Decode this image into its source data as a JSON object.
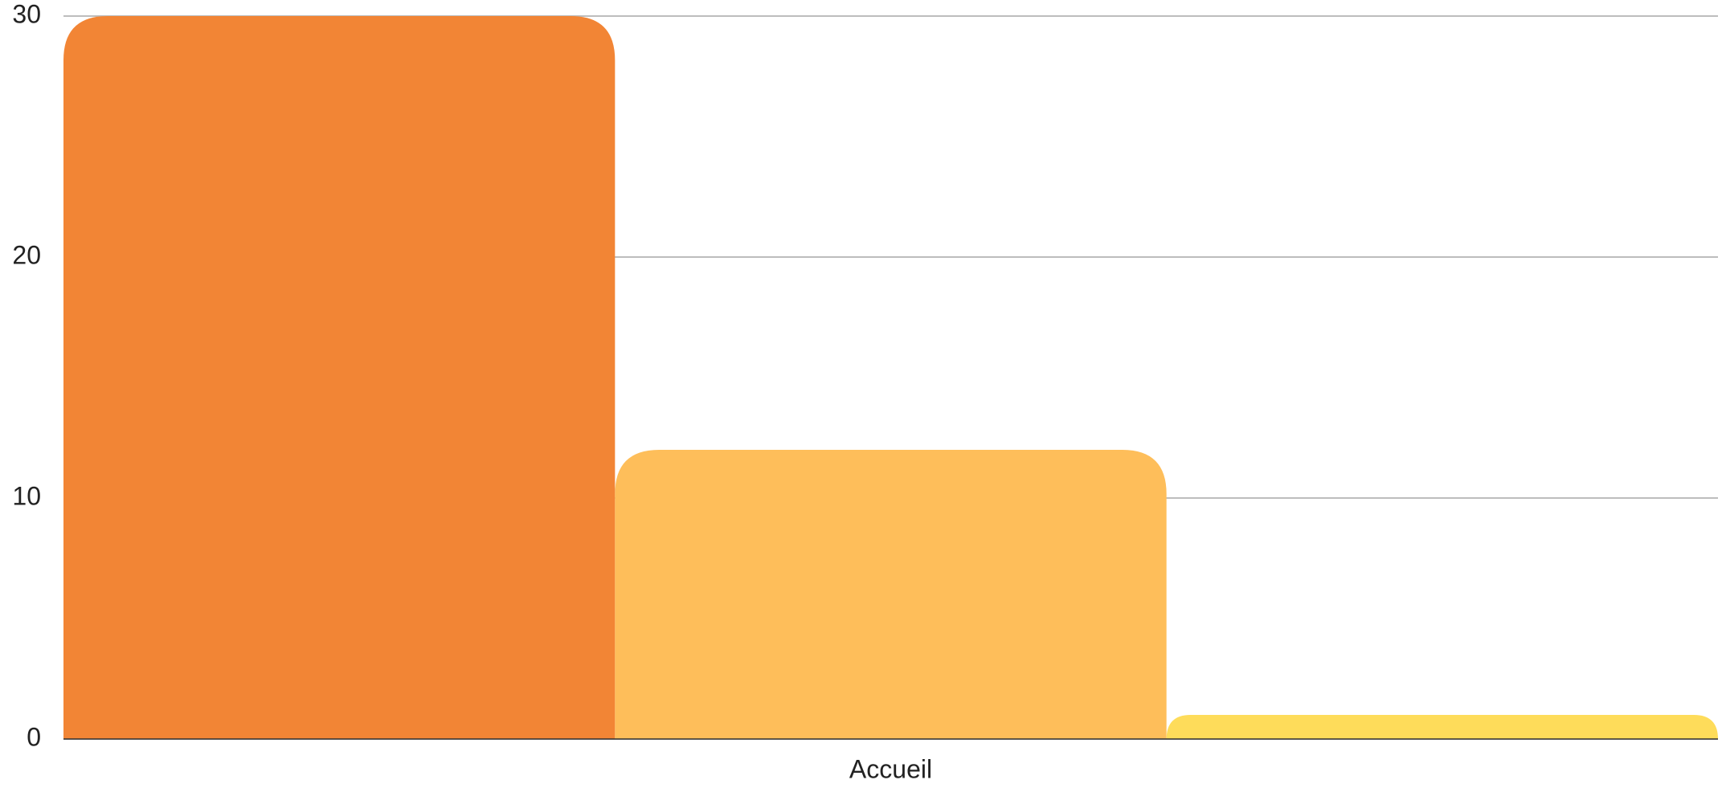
{
  "chart_data": {
    "type": "bar",
    "categories": [
      "Accueil"
    ],
    "series": [
      {
        "color": "#f28535",
        "values": [
          30
        ]
      },
      {
        "color": "#febe5a",
        "values": [
          12
        ]
      },
      {
        "color": "#fedc5a",
        "values": [
          1
        ]
      }
    ],
    "ylim": [
      0,
      30
    ],
    "yticks": [
      0,
      10,
      20,
      30
    ],
    "grid": true
  }
}
